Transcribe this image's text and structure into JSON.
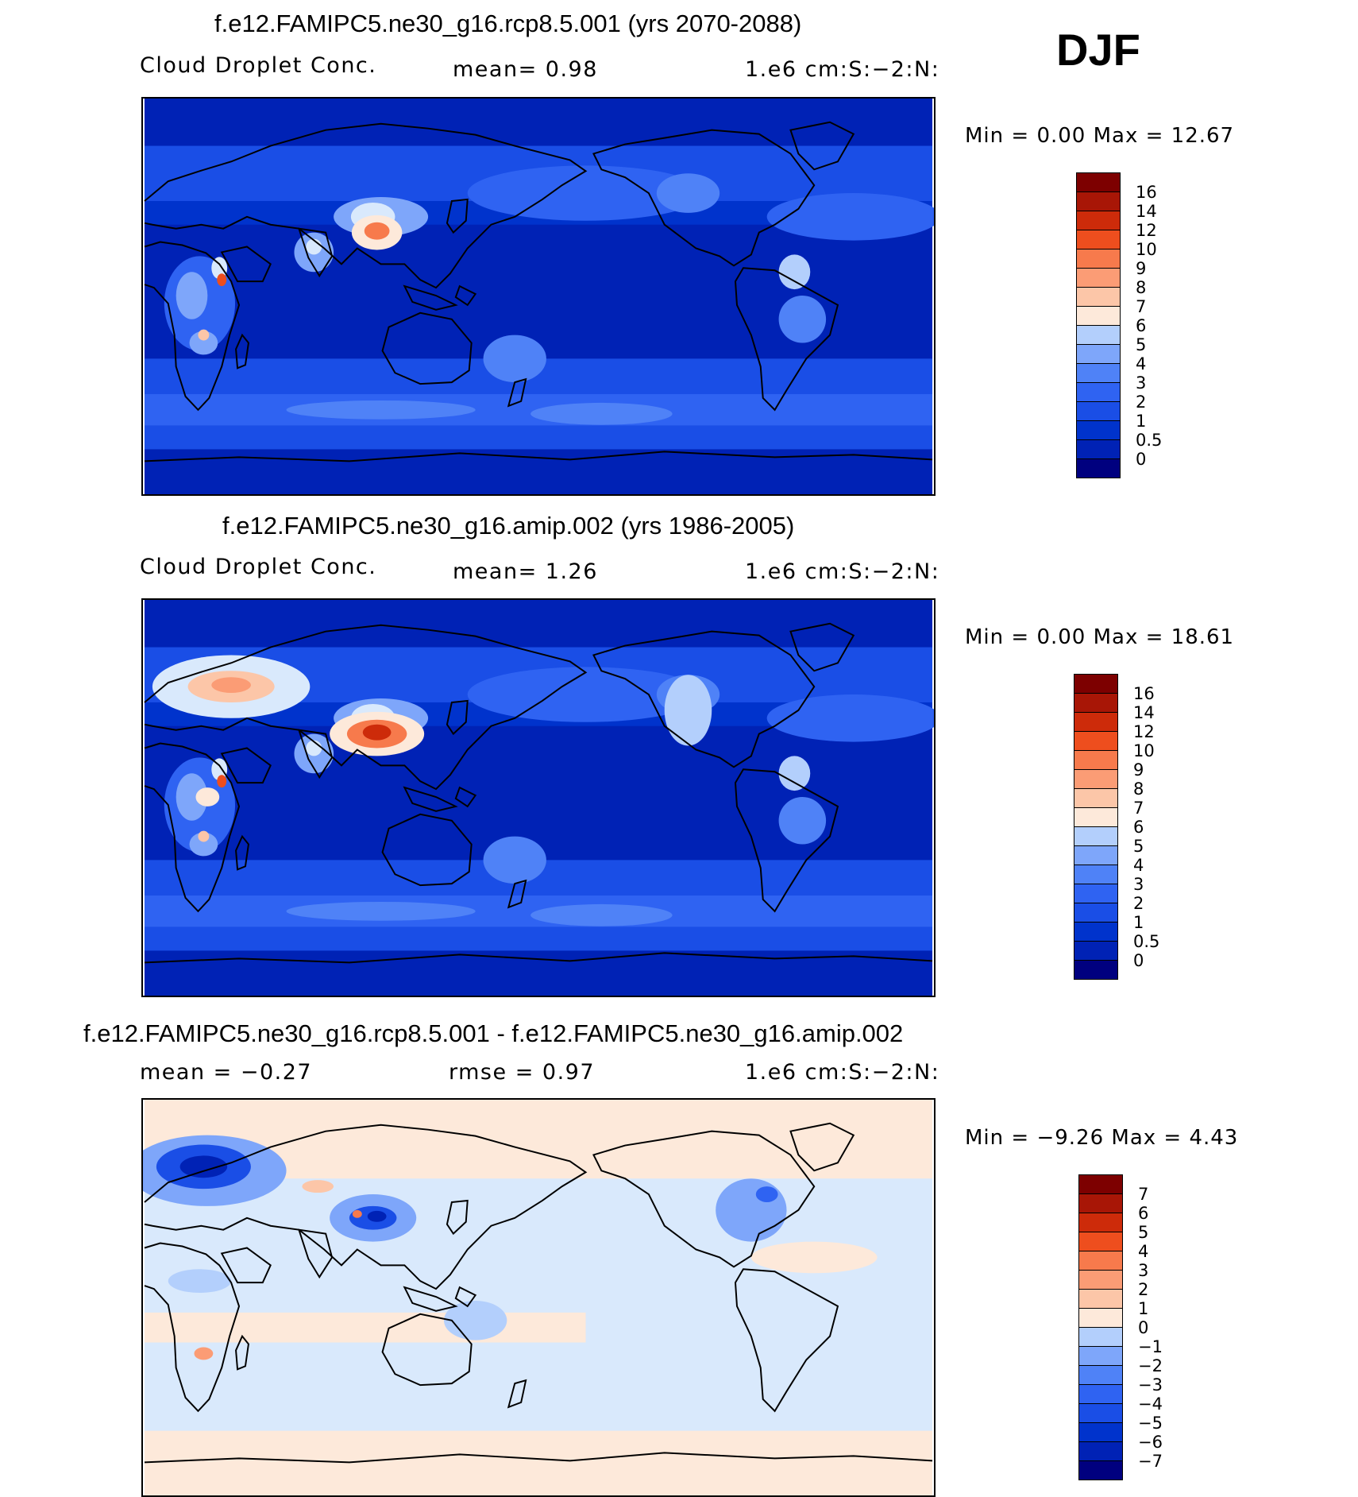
{
  "season": "DJF",
  "colors": {
    "abs": [
      "#00007f",
      "#0022b5",
      "#0033cc",
      "#1a4ee6",
      "#2f63f2",
      "#4f82f7",
      "#7ea6fa",
      "#b3cffc",
      "#d9e9fc",
      "#fde9da",
      "#fcc6a8",
      "#fb9c75",
      "#f77a4c",
      "#ee4e1e",
      "#cd2b0a",
      "#a81606",
      "#7d0000"
    ],
    "diff": [
      "#00007f",
      "#0022b5",
      "#0033cc",
      "#1a4ee6",
      "#2f63f2",
      "#4f82f7",
      "#7ea6fa",
      "#b3cffc",
      "#d9e9fc",
      "#fde9da",
      "#fcc6a8",
      "#fb9c75",
      "#f77a4c",
      "#ee4e1e",
      "#cd2b0a",
      "#a81606",
      "#7d0000"
    ]
  },
  "panels": [
    {
      "title": "f.e12.FAMIPC5.ne30_g16.rcp8.5.001 (yrs 2070-2088)",
      "left": "Cloud Droplet Conc.",
      "center": "mean=    0.98",
      "right": "1.e6 cm:S:−2:N:",
      "minmax": "Min =    0.00 Max =   12.67",
      "scheme": "future",
      "colorbar": [
        "16",
        "14",
        "12",
        "10",
        "9",
        "8",
        "7",
        "6",
        "5",
        "4",
        "3",
        "2",
        "1",
        "0.5",
        "0"
      ]
    },
    {
      "title": "f.e12.FAMIPC5.ne30_g16.amip.002 (yrs 1986-2005)",
      "left": "Cloud Droplet Conc.",
      "center": "mean=    1.26",
      "right": "1.e6 cm:S:−2:N:",
      "minmax": "Min =    0.00 Max =   18.61",
      "scheme": "present",
      "colorbar": [
        "16",
        "14",
        "12",
        "10",
        "9",
        "8",
        "7",
        "6",
        "5",
        "4",
        "3",
        "2",
        "1",
        "0.5",
        "0"
      ]
    },
    {
      "title": "f.e12.FAMIPC5.ne30_g16.rcp8.5.001 - f.e12.FAMIPC5.ne30_g16.amip.002",
      "left": "mean =   −0.27",
      "center": "rmse =    0.97",
      "right": "1.e6 cm:S:−2:N:",
      "minmax": "Min =  −9.26 Max =    4.43",
      "scheme": "diff",
      "colorbar": [
        "7",
        "6",
        "5",
        "4",
        "3",
        "2",
        "1",
        "0",
        "−1",
        "−2",
        "−3",
        "−4",
        "−5",
        "−6",
        "−7"
      ]
    }
  ]
}
